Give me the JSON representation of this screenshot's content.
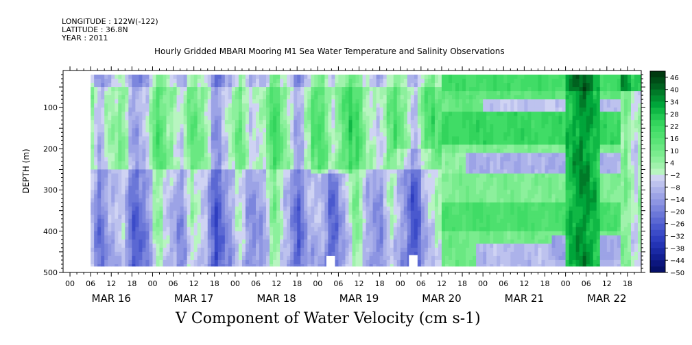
{
  "header": {
    "longitude": "LONGITUDE : 122W(-122)",
    "latitude": "LATITUDE : 36.8N",
    "year": "YEAR : 2011"
  },
  "chart_data": {
    "type": "heatmap",
    "title": "Hourly Gridded MBARI Mooring M1 Sea Water Temperature and Salinity Observations",
    "xlabel": "V Component of Water Velocity (cm s-1)",
    "ylabel": "DEPTH (m)",
    "x_hour_ticks": [
      "00",
      "06",
      "12",
      "18",
      "00",
      "06",
      "12",
      "18",
      "00",
      "06",
      "12",
      "18",
      "00",
      "06",
      "12",
      "18",
      "00",
      "06",
      "12",
      "18",
      "00",
      "06",
      "12",
      "18",
      "00",
      "06",
      "12",
      "18"
    ],
    "x_day_labels": [
      "MAR 16",
      "MAR 17",
      "MAR 18",
      "MAR 19",
      "MAR 20",
      "MAR 21",
      "MAR 22"
    ],
    "xlim_hours": [
      -2,
      166
    ],
    "y_ticks": [
      100,
      200,
      300,
      400,
      500
    ],
    "y_tick_labels": [
      "100",
      "200",
      "300",
      "400",
      "500"
    ],
    "ylim": [
      500,
      10
    ],
    "data_extent": {
      "x_hours": [
        6,
        166
      ],
      "depth": [
        20,
        485
      ]
    },
    "colorbar": {
      "labels": [
        "46",
        "40",
        "34",
        "28",
        "22",
        "16",
        "10",
        "4",
        "-2",
        "-8",
        "-14",
        "-20",
        "-26",
        "-32",
        "-38",
        "-44",
        "-50"
      ],
      "levels": [
        49,
        46,
        43,
        40,
        37,
        34,
        31,
        28,
        25,
        22,
        19,
        16,
        13,
        10,
        7,
        4,
        1,
        -2,
        -5,
        -8,
        -11,
        -14,
        -17,
        -20,
        -23,
        -26,
        -29,
        -32,
        -35,
        -38,
        -41,
        -44,
        -47,
        -50
      ],
      "colors": [
        "#003a10",
        "#004d17",
        "#00611f",
        "#007a28",
        "#008f30",
        "#00a53a",
        "#10b845",
        "#22c852",
        "#33d45c",
        "#40dc66",
        "#4de06e",
        "#5ae477",
        "#6ae882",
        "#7aec8e",
        "#8cf09c",
        "#a0f2ac",
        "#b8f5c0",
        "#cfd3f3",
        "#bdc2ee",
        "#acb2ea",
        "#9ca3e6",
        "#8d95e2",
        "#7c86dd",
        "#6b77d8",
        "#5b68d3",
        "#4a59ce",
        "#3b4bc8",
        "#2e3ec0",
        "#2333b4",
        "#1a29a4",
        "#121f92",
        "#0c167e",
        "#06106a"
      ]
    },
    "field_note": "V velocity field (cm s-1): Mar 16-19 alternating positive (green, 4-22) and negative (blue, -2 to -26) vertical bands; Mar 20-21 horizontal layers with strong positive (~16-28) near surface and 120-180 m and 330-400 m, negative (~-5 to -14) near 230-250 m and 420-470 m; Mar 22 strong positive (~28-46) column near 08-12h."
  }
}
